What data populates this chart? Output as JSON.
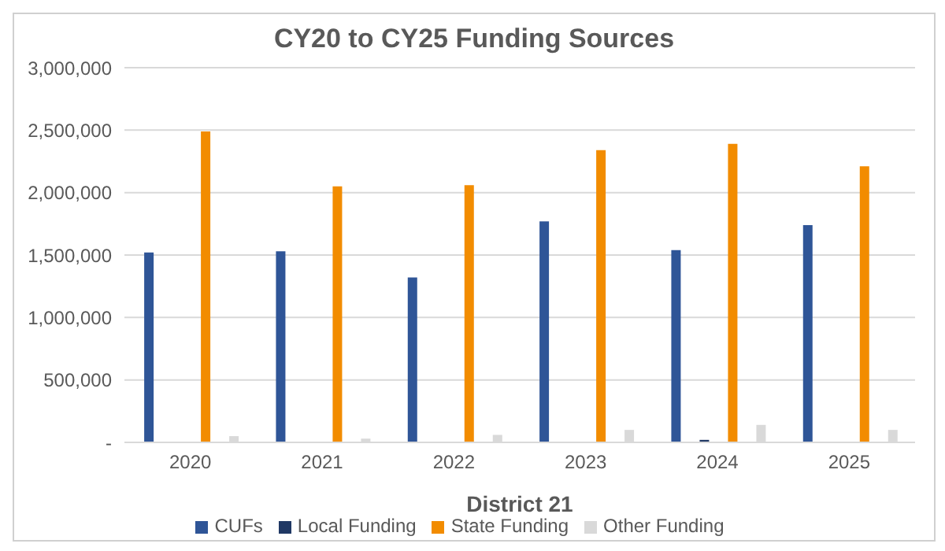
{
  "chart_data": {
    "type": "bar",
    "title": "CY20 to CY25 Funding Sources",
    "xlabel": "District 21",
    "categories": [
      "2020",
      "2021",
      "2022",
      "2023",
      "2024",
      "2025"
    ],
    "series": [
      {
        "name": "CUFs",
        "color": "#2f5597",
        "values": [
          1520000,
          1530000,
          1320000,
          1770000,
          1540000,
          1740000
        ]
      },
      {
        "name": "Local Funding",
        "color": "#203864",
        "values": [
          0,
          0,
          0,
          0,
          20000,
          0
        ]
      },
      {
        "name": "State Funding",
        "color": "#f28c00",
        "values": [
          2490000,
          2050000,
          2060000,
          2340000,
          2390000,
          2210000
        ]
      },
      {
        "name": "Other Funding",
        "color": "#d9d9d9",
        "values": [
          50000,
          30000,
          60000,
          100000,
          140000,
          100000
        ]
      }
    ],
    "ylim": [
      0,
      3000000
    ],
    "yticks": [
      {
        "value": 0,
        "label": "-"
      },
      {
        "value": 500000,
        "label": "500,000"
      },
      {
        "value": 1000000,
        "label": "1,000,000"
      },
      {
        "value": 1500000,
        "label": "1,500,000"
      },
      {
        "value": 2000000,
        "label": "2,000,000"
      },
      {
        "value": 2500000,
        "label": "2,500,000"
      },
      {
        "value": 3000000,
        "label": "3,000,000"
      }
    ],
    "grid": "y",
    "legend": "bottom"
  }
}
